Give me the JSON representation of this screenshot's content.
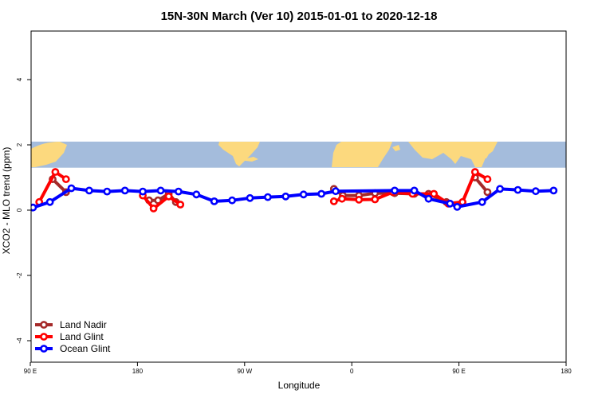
{
  "chart_data": {
    "type": "line",
    "title": "15N-30N March (Ver 10)   2015-01-01 to 2020-12-18",
    "xlabel": "Longitude",
    "ylabel": "XCO2 - MLO trend (ppm)",
    "xlim": [
      -90,
      180
    ],
    "ylim": [
      -4.5,
      5.5
    ],
    "x_ticks": [
      {
        "value": -90,
        "label": "90 E"
      },
      {
        "value": -30,
        "label": "180"
      },
      {
        "value": 30,
        "label": "90 W"
      },
      {
        "value": 90,
        "label": "0"
      },
      {
        "value": 150,
        "label": "90 E"
      },
      {
        "value": 210,
        "label": "180"
      }
    ],
    "y_ticks": [
      {
        "value": -4,
        "label": "-4"
      },
      {
        "value": -2,
        "label": "-2"
      },
      {
        "value": 0,
        "label": "0"
      },
      {
        "value": 2,
        "label": "2"
      },
      {
        "value": 4,
        "label": "4"
      }
    ],
    "map_band": {
      "y_top": 2.1,
      "y_bottom": 1.3,
      "ocean_color": "#a4bcdc",
      "land_color": "#fcd97e"
    },
    "legend_position": "bottom-left",
    "series": [
      {
        "name": "Land Nadir",
        "color": "#a52a2a",
        "segments": [
          [
            [
              -77.5,
              0.95
            ],
            [
              -70,
              0.55
            ]
          ],
          [
            [
              -23.5,
              0.3
            ],
            [
              -18.5,
              0.3
            ],
            [
              -12.5,
              0.5
            ],
            [
              -8.5,
              0.25
            ]
          ],
          [
            [
              80,
              0.65
            ],
            [
              85,
              0.45
            ],
            [
              94,
              0.45
            ],
            [
              103,
              0.52
            ],
            [
              114,
              0.52
            ],
            [
              125,
              0.5
            ],
            [
              133,
              0.5
            ],
            [
              143,
              0.25
            ]
          ],
          [
            [
              159,
              1.0
            ],
            [
              166,
              0.55
            ]
          ]
        ]
      },
      {
        "name": "Land Glint",
        "color": "#ff0000",
        "segments": [
          [
            [
              -85,
              0.25
            ],
            [
              -76,
              1.17
            ],
            [
              -70,
              0.95
            ]
          ],
          [
            [
              -27,
              0.45
            ],
            [
              -21,
              0.05
            ],
            [
              -12.5,
              0.42
            ],
            [
              -6,
              0.17
            ]
          ],
          [
            [
              80,
              0.27
            ],
            [
              84.5,
              0.35
            ],
            [
              94,
              0.32
            ],
            [
              103,
              0.33
            ],
            [
              113,
              0.55
            ],
            [
              124,
              0.5
            ],
            [
              136,
              0.5
            ],
            [
              144,
              0.2
            ],
            [
              152,
              0.25
            ],
            [
              159,
              1.17
            ],
            [
              166,
              0.95
            ]
          ]
        ]
      },
      {
        "name": "Ocean Glint",
        "color": "#0000ff",
        "segments": [
          [
            [
              -88.5,
              0.08
            ],
            [
              -79,
              0.25
            ],
            [
              -67,
              0.67
            ],
            [
              -57,
              0.6
            ],
            [
              -47,
              0.57
            ],
            [
              -37,
              0.6
            ],
            [
              -27,
              0.57
            ],
            [
              -17,
              0.6
            ],
            [
              -7,
              0.57
            ],
            [
              3,
              0.48
            ],
            [
              13,
              0.27
            ],
            [
              23,
              0.3
            ],
            [
              33,
              0.37
            ],
            [
              43,
              0.4
            ],
            [
              53,
              0.42
            ],
            [
              63,
              0.48
            ],
            [
              73,
              0.5
            ],
            [
              81,
              0.58
            ],
            [
              114,
              0.6
            ],
            [
              125,
              0.6
            ],
            [
              133,
              0.35
            ],
            [
              145,
              0.2
            ],
            [
              149,
              0.1
            ],
            [
              163,
              0.25
            ],
            [
              173,
              0.65
            ],
            [
              183,
              0.62
            ],
            [
              193,
              0.58
            ],
            [
              203,
              0.6
            ]
          ]
        ]
      }
    ]
  }
}
